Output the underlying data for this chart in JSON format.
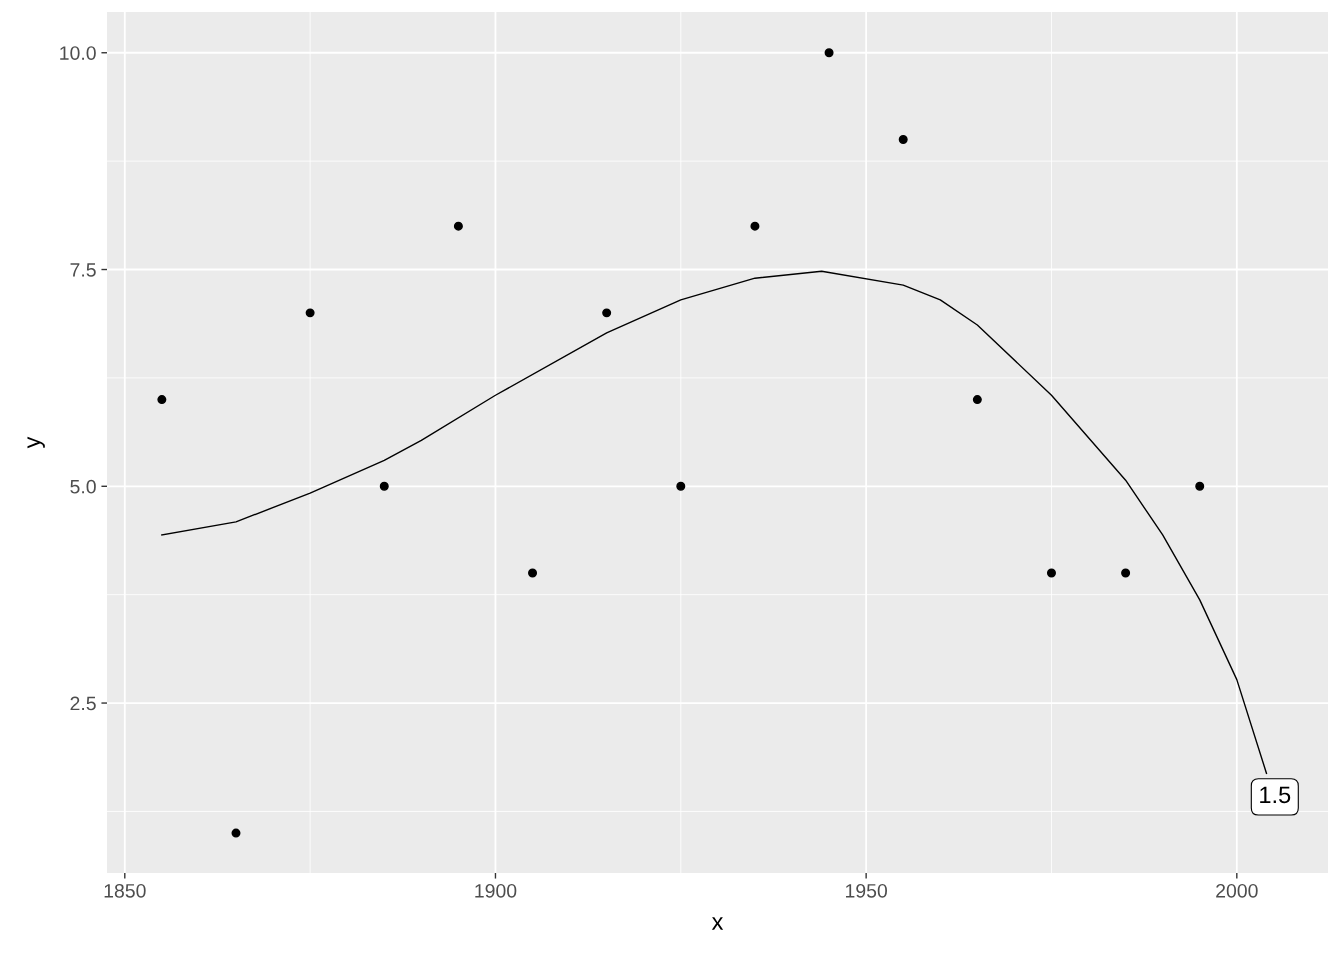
{
  "chart_data": {
    "type": "scatter",
    "xlabel": "x",
    "ylabel": "y",
    "x": [
      1855,
      1865,
      1875,
      1885,
      1895,
      1905,
      1915,
      1925,
      1935,
      1945,
      1955,
      1965,
      1975,
      1985,
      1995
    ],
    "series": [
      {
        "color": "#000000",
        "marker": "circle",
        "values": [
          6,
          1,
          7,
          5,
          8,
          4,
          7,
          5,
          8,
          10,
          9,
          6,
          4,
          4,
          5
        ]
      },
      {
        "type": "line",
        "color": "#000000",
        "x": [
          1855,
          1865,
          1875,
          1885,
          1890,
          1900,
          1915,
          1925,
          1935,
          1944,
          1955,
          1960,
          1965,
          1975,
          1985,
          1990,
          1995,
          2000,
          2004
        ],
        "values": [
          4.44,
          4.59,
          4.92,
          5.3,
          5.53,
          6.05,
          6.77,
          7.15,
          7.4,
          7.48,
          7.32,
          7.15,
          6.86,
          6.05,
          5.07,
          4.44,
          3.69,
          2.77,
          1.69
        ]
      }
    ],
    "annotations": [
      {
        "text": "1.5",
        "x": 2004,
        "y": 1.69
      }
    ],
    "xlim": [
      1847.6,
      2012.3
    ],
    "ylim": [
      0.54,
      10.47
    ],
    "xticks": [
      1850,
      1900,
      1950,
      2000
    ],
    "yticks": [
      {
        "value": 2.5,
        "label": "2.5"
      },
      {
        "value": 5,
        "label": "5.0"
      },
      {
        "value": 7.5,
        "label": "7.5"
      },
      {
        "value": 10,
        "label": "10.0"
      }
    ],
    "grid": true,
    "legend": false
  }
}
